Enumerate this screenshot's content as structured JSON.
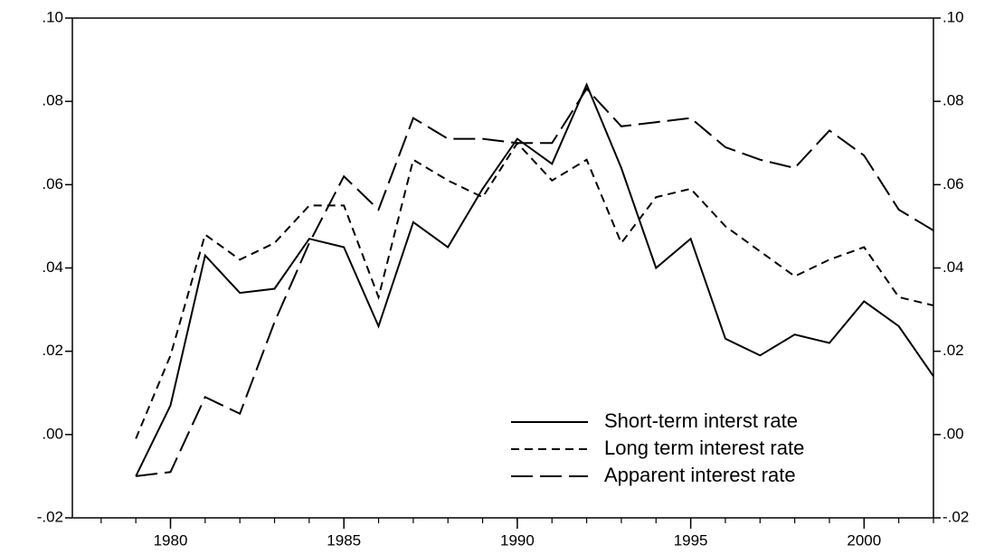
{
  "chart_data": {
    "type": "line",
    "x": [
      1979,
      1980,
      1981,
      1982,
      1983,
      1984,
      1985,
      1986,
      1987,
      1988,
      1989,
      1990,
      1991,
      1992,
      1993,
      1994,
      1995,
      1996,
      1997,
      1998,
      1999,
      2000,
      2001,
      2002
    ],
    "series": [
      {
        "name": "Short-term interst rate",
        "color": "#000000",
        "linestyle": "solid",
        "values": [
          -0.01,
          0.007,
          0.043,
          0.034,
          0.035,
          0.047,
          0.045,
          0.026,
          0.051,
          0.045,
          0.059,
          0.071,
          0.065,
          0.084,
          0.064,
          0.04,
          0.047,
          0.023,
          0.019,
          0.024,
          0.022,
          0.032,
          0.026,
          0.014
        ]
      },
      {
        "name": "Long term interest rate",
        "color": "#000000",
        "linestyle": "dashed",
        "values": [
          -0.001,
          0.019,
          0.048,
          0.042,
          0.046,
          0.055,
          0.055,
          0.033,
          0.066,
          0.061,
          0.057,
          0.07,
          0.061,
          0.066,
          0.046,
          0.057,
          0.059,
          0.05,
          0.044,
          0.038,
          0.042,
          0.045,
          0.033,
          0.031
        ]
      },
      {
        "name": "Apparent interest rate",
        "color": "#000000",
        "linestyle": "longdash",
        "values": [
          -0.01,
          -0.009,
          0.009,
          0.005,
          0.027,
          0.046,
          0.062,
          0.054,
          0.076,
          0.071,
          0.071,
          0.07,
          0.07,
          0.083,
          0.074,
          0.075,
          0.076,
          0.069,
          0.066,
          0.064,
          0.073,
          0.067,
          0.054,
          0.049
        ]
      }
    ],
    "xlim": [
      1977.17,
      2002
    ],
    "xticks": [
      1980,
      1985,
      1990,
      1995,
      2000
    ],
    "ylim": [
      -0.02,
      0.1
    ],
    "yticks": [
      {
        "value": -0.02,
        "label": "-.02"
      },
      {
        "value": 0,
        "label": ".00"
      },
      {
        "value": 0.02,
        "label": ".02"
      },
      {
        "value": 0.04,
        "label": ".04"
      },
      {
        "value": 0.06,
        "label": ".06"
      },
      {
        "value": 0.08,
        "label": ".08"
      },
      {
        "value": 0.1,
        "label": ".10"
      }
    ],
    "y2lim": [
      -0.02,
      0.1
    ],
    "y2ticks": [
      {
        "value": -0.02,
        "label": "-.02"
      },
      {
        "value": 0,
        "label": ".00"
      },
      {
        "value": 0.02,
        "label": ".02"
      },
      {
        "value": 0.04,
        "label": ".04"
      },
      {
        "value": 0.06,
        "label": ".06"
      },
      {
        "value": 0.08,
        "label": ".08"
      },
      {
        "value": 0.1,
        "label": ".10"
      }
    ],
    "legend": "lower-right"
  }
}
